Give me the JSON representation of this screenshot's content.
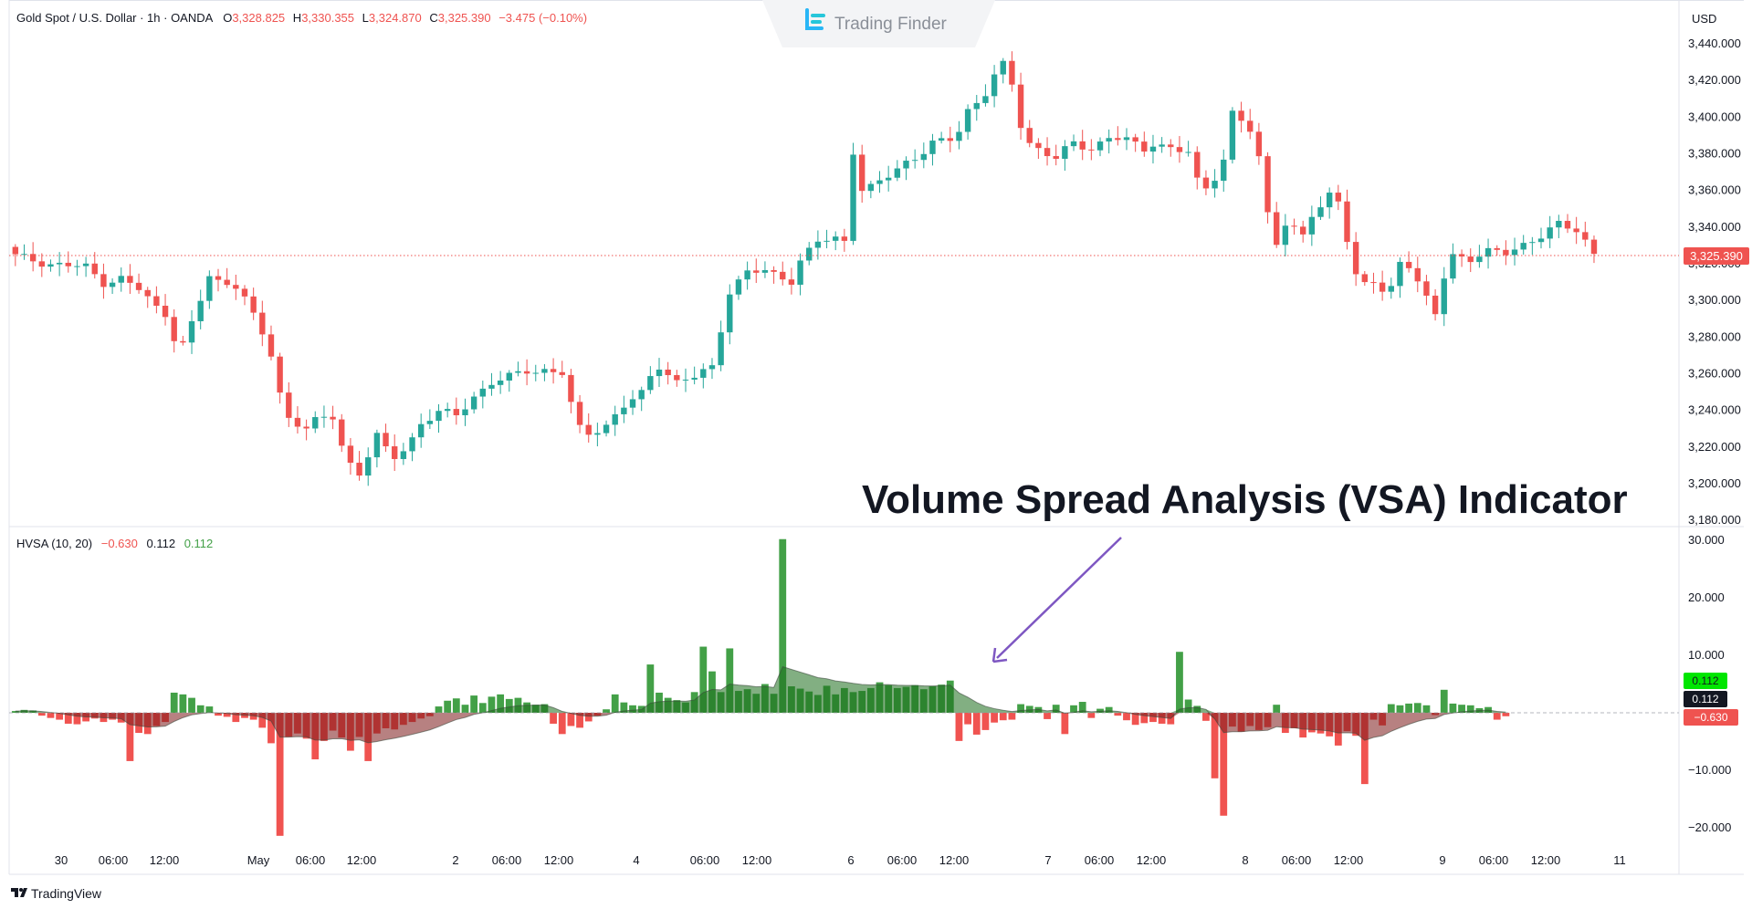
{
  "legend": {
    "symbol": "Gold Spot / U.S. Dollar · 1h · OANDA",
    "o_label": "O",
    "o": "3,328.825",
    "h_label": "H",
    "h": "3,330.355",
    "l_label": "L",
    "l": "3,324.870",
    "c_label": "C",
    "c": "3,325.390",
    "change": "−3.475 (−0.10%)"
  },
  "indicator_legend": {
    "name": "HVSA (10, 20)",
    "v1": "−0.630",
    "v2": "0.112",
    "v3": "0.112"
  },
  "brand": "Trading Finder",
  "currency": "USD",
  "annotation": "Volume Spread Analysis (VSA) Indicator",
  "footer_logo": "TradingView",
  "last_price_label": "3,325.390",
  "indicator_badges": {
    "green": "0.112",
    "black": "0.112",
    "red": "−0.630"
  },
  "colors": {
    "up": "#26a69a",
    "down": "#ef5350",
    "vsa_pos": "#43a047",
    "vsa_neg": "#f05350",
    "area_pos": "#1b6e1b",
    "area_neg": "#7b1a1a",
    "arrow": "#7e57c2"
  },
  "chart_data": [
    {
      "type": "candlestick",
      "title": "Gold Spot / U.S. Dollar · 1h · OANDA",
      "y_ticks": [
        "3,440.000",
        "3,420.000",
        "3,400.000",
        "3,380.000",
        "3,360.000",
        "3,340.000",
        "3,320.000",
        "3,300.000",
        "3,280.000",
        "3,260.000",
        "3,240.000",
        "3,220.000",
        "3,200.000",
        "3,180.000"
      ],
      "x_ticks": [
        "30",
        "06:00",
        "12:00",
        "May",
        "06:00",
        "12:00",
        "2",
        "06:00",
        "12:00",
        "4",
        "06:00",
        "12:00",
        "6",
        "06:00",
        "12:00",
        "7",
        "06:00",
        "12:00",
        "8",
        "06:00",
        "12:00",
        "9",
        "06:00",
        "12:00",
        "11"
      ],
      "ylim": [
        3180,
        3445
      ],
      "last_close": 3325.39,
      "close_path": [
        [
          0,
          3324
        ],
        [
          4,
          3320
        ],
        [
          8,
          3318
        ],
        [
          10,
          3310
        ],
        [
          12,
          3312
        ],
        [
          14,
          3306
        ],
        [
          16,
          3296
        ],
        [
          17,
          3293
        ],
        [
          18,
          3280
        ],
        [
          19,
          3276
        ],
        [
          20,
          3287
        ],
        [
          21,
          3300
        ],
        [
          22,
          3313
        ],
        [
          23,
          3310
        ],
        [
          25,
          3309
        ],
        [
          26,
          3302
        ],
        [
          27,
          3291
        ],
        [
          28,
          3281
        ],
        [
          29,
          3270
        ],
        [
          30,
          3249
        ],
        [
          31,
          3236
        ],
        [
          33,
          3231
        ],
        [
          34,
          3234
        ],
        [
          36,
          3236
        ],
        [
          37,
          3221
        ],
        [
          38,
          3211
        ],
        [
          39,
          3206
        ],
        [
          41,
          3226
        ],
        [
          42,
          3218
        ],
        [
          43,
          3214
        ],
        [
          44,
          3219
        ],
        [
          45,
          3225
        ],
        [
          46,
          3233
        ],
        [
          48,
          3239
        ],
        [
          50,
          3237
        ],
        [
          52,
          3248
        ],
        [
          54,
          3255
        ],
        [
          56,
          3258
        ],
        [
          58,
          3262
        ],
        [
          60,
          3262
        ],
        [
          62,
          3260
        ],
        [
          63,
          3243
        ],
        [
          64,
          3230
        ],
        [
          65,
          3228
        ],
        [
          67,
          3232
        ],
        [
          69,
          3242
        ],
        [
          71,
          3249
        ],
        [
          72,
          3259
        ],
        [
          73,
          3265
        ],
        [
          75,
          3255
        ],
        [
          77,
          3258
        ],
        [
          79,
          3264
        ],
        [
          80,
          3285
        ],
        [
          81,
          3305
        ],
        [
          83,
          3315
        ],
        [
          85,
          3316
        ],
        [
          87,
          3313
        ],
        [
          88,
          3311
        ],
        [
          89,
          3321
        ],
        [
          91,
          3332
        ],
        [
          93,
          3334
        ],
        [
          94,
          3333
        ],
        [
          95,
          3382
        ],
        [
          96,
          3360
        ],
        [
          97,
          3361
        ],
        [
          99,
          3368
        ],
        [
          101,
          3376
        ],
        [
          103,
          3381
        ],
        [
          104,
          3385
        ],
        [
          106,
          3388
        ],
        [
          107,
          3393
        ],
        [
          108,
          3404
        ],
        [
          110,
          3413
        ],
        [
          111,
          3422
        ],
        [
          112,
          3428
        ],
        [
          113,
          3418
        ],
        [
          114,
          3396
        ],
        [
          115,
          3386
        ],
        [
          116,
          3383
        ],
        [
          118,
          3377
        ],
        [
          120,
          3386
        ],
        [
          122,
          3383
        ],
        [
          124,
          3389
        ],
        [
          126,
          3387
        ],
        [
          128,
          3383
        ],
        [
          129,
          3386
        ],
        [
          131,
          3383
        ],
        [
          133,
          3380
        ],
        [
          134,
          3365
        ],
        [
          135,
          3362
        ],
        [
          136,
          3368
        ],
        [
          137,
          3377
        ],
        [
          138,
          3402
        ],
        [
          139,
          3398
        ],
        [
          140,
          3392
        ],
        [
          141,
          3377
        ],
        [
          142,
          3348
        ],
        [
          143,
          3333
        ],
        [
          144,
          3342
        ],
        [
          146,
          3335
        ],
        [
          147,
          3346
        ],
        [
          148,
          3350
        ],
        [
          149,
          3358
        ],
        [
          150,
          3356
        ],
        [
          151,
          3334
        ],
        [
          152,
          3313
        ],
        [
          153,
          3308
        ],
        [
          154,
          3310
        ],
        [
          155,
          3305
        ],
        [
          156,
          3307
        ],
        [
          157,
          3322
        ],
        [
          158,
          3320
        ],
        [
          160,
          3300
        ],
        [
          161,
          3292
        ],
        [
          162,
          3313
        ],
        [
          163,
          3325
        ],
        [
          165,
          3323
        ],
        [
          167,
          3326
        ],
        [
          169,
          3326
        ],
        [
          171,
          3331
        ],
        [
          173,
          3335
        ],
        [
          175,
          3341
        ],
        [
          177,
          3339
        ],
        [
          178,
          3333
        ],
        [
          179,
          3325
        ]
      ]
    },
    {
      "type": "bar",
      "title": "HVSA (10, 20)",
      "y_ticks": [
        "30.000",
        "20.000",
        "10.000",
        "0.000",
        "−10.000",
        "−20.000"
      ],
      "ylim": [
        -22,
        31
      ],
      "series": [
        {
          "name": "HVSA",
          "values": [
            0.3,
            0.5,
            0.4,
            -0.5,
            -0.9,
            -1.2,
            -1.9,
            -2.0,
            -1.5,
            -1.0,
            -1.6,
            -1.2,
            -1.7,
            -8.4,
            -3.5,
            -3.7,
            -2.3,
            -1.6,
            3.5,
            3.2,
            2.6,
            1.3,
            1.1,
            -0.5,
            -0.7,
            -1.6,
            -0.9,
            -1.2,
            -2.6,
            -5.3,
            -21.4,
            -4.2,
            -3.6,
            -4.5,
            -8.1,
            -4.9,
            -3.1,
            -4.3,
            -6.6,
            -4.2,
            -8.4,
            -3.6,
            -2.7,
            -2.9,
            -2.1,
            -1.6,
            -1.0,
            -0.6,
            1.1,
            2.1,
            2.5,
            1.4,
            3.0,
            1.7,
            2.8,
            3.2,
            2.4,
            2.6,
            1.8,
            1.4,
            1.5,
            -1.9,
            -3.7,
            -2.3,
            -2.6,
            -1.5,
            -0.5,
            0.6,
            3.2,
            1.8,
            1.3,
            1.2,
            8.4,
            3.5,
            2.6,
            2.2,
            1.8,
            3.6,
            11.5,
            7.2,
            3.6,
            11.2,
            3.8,
            4.1,
            3.3,
            5.0,
            3.3,
            30.2,
            4.6,
            4.2,
            3.7,
            3.1,
            4.7,
            3.2,
            4.3,
            3.6,
            3.8,
            4.3,
            5.3,
            4.8,
            4.3,
            4.5,
            4.8,
            4.1,
            4.6,
            4.9,
            5.6,
            -4.9,
            -2.0,
            -3.8,
            -3.0,
            -1.7,
            -1.3,
            -1.2,
            1.5,
            1.2,
            1.0,
            -1.1,
            1.4,
            -3.7,
            1.3,
            1.9,
            -0.9,
            0.7,
            1.0,
            -0.5,
            -1.3,
            -2.1,
            -1.8,
            -1.6,
            -1.9,
            -2.0,
            10.6,
            2.3,
            1.2,
            -1.4,
            -11.4,
            -17.9,
            -2.4,
            -3.3,
            -2.3,
            -3.0,
            -2.5,
            1.4,
            -3.5,
            -2.7,
            -4.3,
            -3.4,
            -3.6,
            -4.1,
            -5.7,
            -3.2,
            -4.0,
            -12.4,
            -1.2,
            -2.2,
            1.5,
            1.3,
            1.6,
            1.7,
            1.3,
            -0.4,
            4.0,
            1.6,
            1.4,
            1.3,
            0.8,
            1.0,
            -1.2,
            -0.6
          ]
        },
        {
          "name": "HVSA MA",
          "values": []
        }
      ]
    }
  ]
}
